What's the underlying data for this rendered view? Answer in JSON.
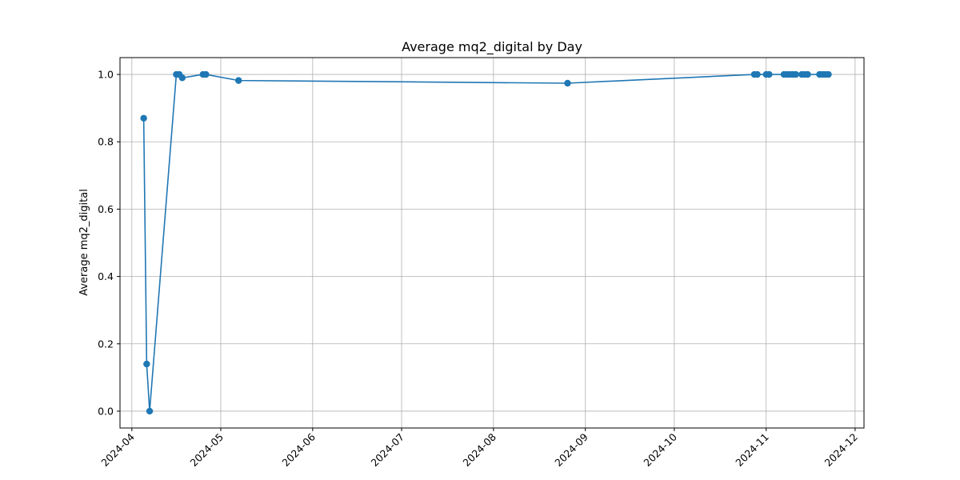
{
  "chart_data": {
    "type": "line",
    "title": "Average mq2_digital by Day",
    "xlabel": "",
    "ylabel": "Average mq2_digital",
    "x_ticks": [
      "2024-04",
      "2024-05",
      "2024-06",
      "2024-07",
      "2024-08",
      "2024-09",
      "2024-10",
      "2024-11",
      "2024-12"
    ],
    "y_ticks": [
      "0.0",
      "0.2",
      "0.4",
      "0.6",
      "0.8",
      "1.0"
    ],
    "xlim": [
      "2024-03-28",
      "2024-12-04"
    ],
    "ylim": [
      -0.05,
      1.05
    ],
    "grid": true,
    "color": "#1f77b4",
    "series": [
      {
        "x": [
          "2024-04-05",
          "2024-04-06",
          "2024-04-07",
          "2024-04-16",
          "2024-04-17",
          "2024-04-18",
          "2024-04-25",
          "2024-04-26",
          "2024-05-07",
          "2024-08-26",
          "2024-10-28",
          "2024-10-29",
          "2024-11-01",
          "2024-11-02",
          "2024-11-07",
          "2024-11-08",
          "2024-11-09",
          "2024-11-10",
          "2024-11-11",
          "2024-11-13",
          "2024-11-14",
          "2024-11-15",
          "2024-11-19",
          "2024-11-20",
          "2024-11-21",
          "2024-11-22"
        ],
        "y": [
          0.87,
          0.14,
          0.0,
          1.0,
          1.0,
          0.99,
          1.0,
          1.0,
          0.982,
          0.974,
          1.0,
          1.0,
          1.0,
          1.0,
          1.0,
          1.0,
          1.0,
          1.0,
          1.0,
          1.0,
          1.0,
          1.0,
          1.0,
          1.0,
          1.0,
          1.0
        ]
      }
    ]
  }
}
